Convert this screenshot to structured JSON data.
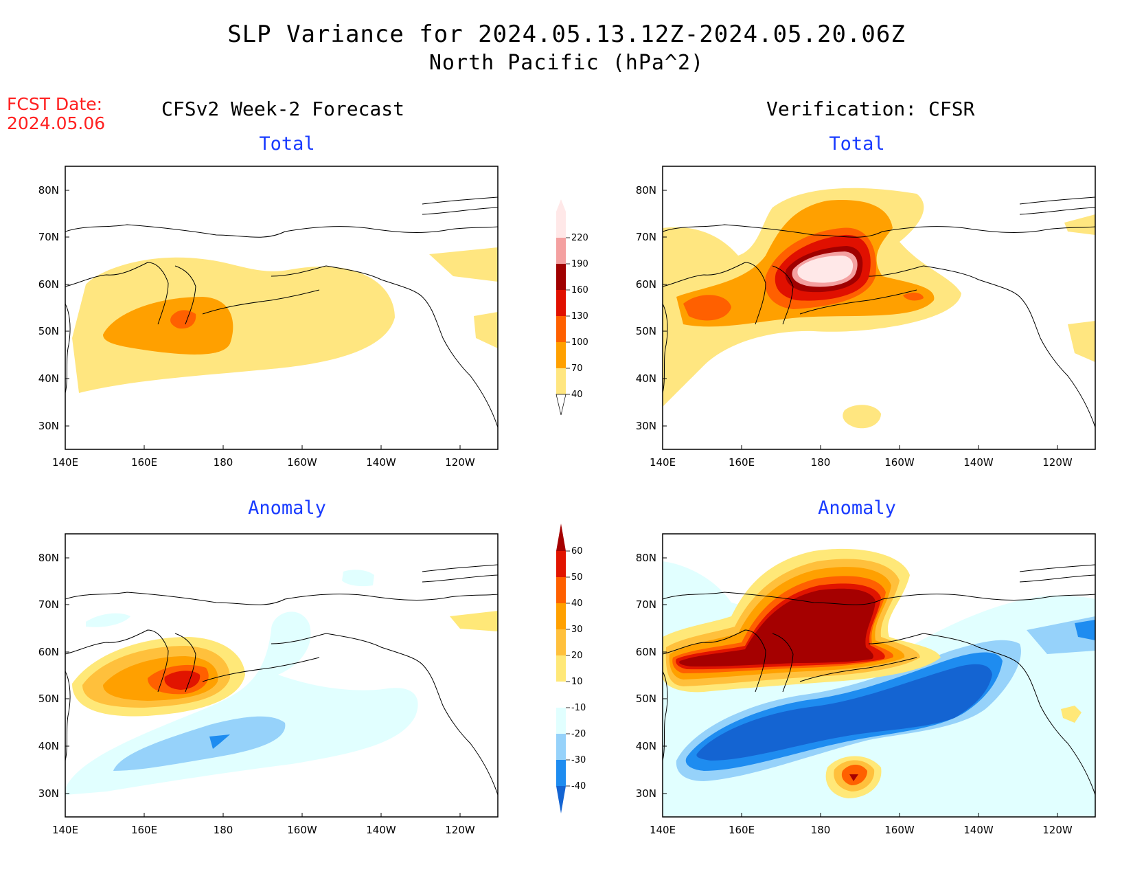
{
  "title": {
    "line1": "SLP Variance for 2024.05.13.12Z-2024.05.20.06Z",
    "line2": "North Pacific (hPa^2)"
  },
  "forecast_date": {
    "label": "FCST Date:",
    "value": "2024.05.06"
  },
  "columns": {
    "left": "CFSv2 Week-2 Forecast",
    "right": "Verification: CFSR"
  },
  "panel_titles": {
    "total": "Total",
    "anomaly": "Anomaly"
  },
  "axes": {
    "x_ticks": [
      "140E",
      "160E",
      "180",
      "160W",
      "140W",
      "120W"
    ],
    "y_ticks": [
      "30N",
      "40N",
      "50N",
      "60N",
      "70N",
      "80N"
    ]
  },
  "colorbar_total": {
    "levels": [
      "40",
      "70",
      "100",
      "130",
      "160",
      "190",
      "220"
    ],
    "colors": [
      "#ffe680",
      "#ffa000",
      "#ff6000",
      "#e01000",
      "#a00000",
      "#f4a0a0",
      "#ffe8e8"
    ]
  },
  "colorbar_anomaly": {
    "levels": [
      "-40",
      "-30",
      "-20",
      "-10",
      "10",
      "20",
      "30",
      "40",
      "50",
      "60"
    ],
    "colors": [
      "#1464d2",
      "#1e8cf0",
      "#96d2fa",
      "#e1ffff",
      "#ffffff",
      "#ffe878",
      "#ffc03c",
      "#ffa000",
      "#ff6000",
      "#e11400",
      "#a50000"
    ]
  }
}
